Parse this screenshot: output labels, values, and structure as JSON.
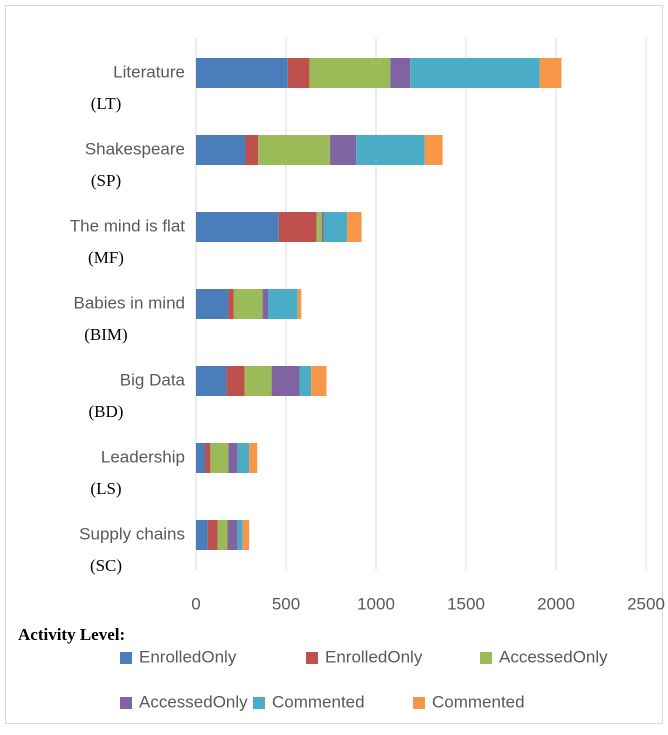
{
  "chart_data": {
    "type": "stacked-bar-horizontal",
    "categories": [
      "Literature",
      "Shakespeare",
      "The mind is flat",
      "Babies in mind",
      "Big Data",
      "Leadership",
      "Supply chains"
    ],
    "category_codes": [
      "(LT)",
      "(SP)",
      "(MF)",
      "(BIM)",
      "(BD)",
      "(LS)",
      "(SC)"
    ],
    "legend_title": "Activity Level:",
    "series": [
      {
        "name": "EnrolledOnly",
        "color": "#4a7ebb",
        "values": [
          510,
          275,
          460,
          180,
          170,
          50,
          65
        ]
      },
      {
        "name": "EnrolledOnly",
        "color": "#c0504d",
        "values": [
          120,
          70,
          210,
          30,
          100,
          30,
          55
        ]
      },
      {
        "name": "AccessedOnly",
        "color": "#9bbb59",
        "values": [
          450,
          400,
          30,
          160,
          150,
          100,
          55
        ]
      },
      {
        "name": "AccessedOnly",
        "color": "#8064a2",
        "values": [
          110,
          145,
          10,
          30,
          155,
          50,
          55
        ]
      },
      {
        "name": "Commented",
        "color": "#4bacc6",
        "values": [
          720,
          380,
          130,
          165,
          65,
          65,
          30
        ]
      },
      {
        "name": "Commented",
        "color": "#f79646",
        "values": [
          120,
          100,
          80,
          20,
          85,
          45,
          35
        ]
      }
    ],
    "xlim": [
      0,
      2500
    ],
    "xticks": [
      0,
      500,
      1000,
      1500,
      2000,
      2500
    ],
    "grid": true
  }
}
